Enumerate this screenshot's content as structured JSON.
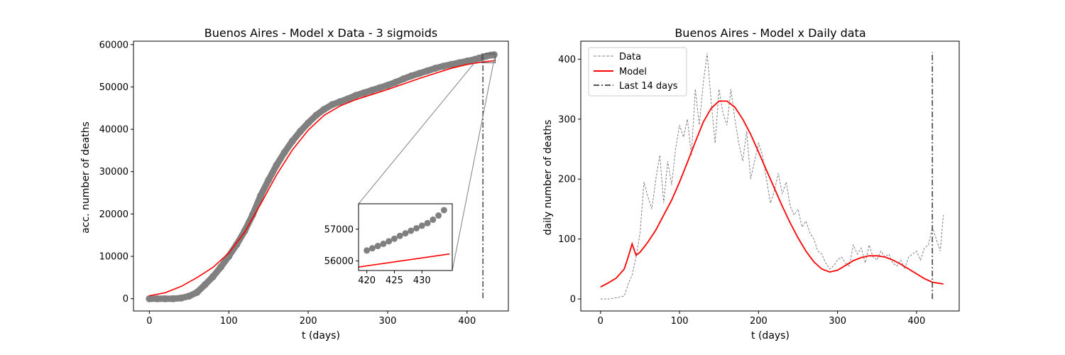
{
  "chart_data": [
    {
      "type": "line",
      "title": "Buenos Aires - Model x Data - 3 sigmoids",
      "xlabel": "t (days)",
      "ylabel": "acc. number of deaths",
      "xlim": [
        -20,
        452
      ],
      "ylim": [
        -2900,
        60800
      ],
      "xticks": [
        0,
        100,
        200,
        300,
        400
      ],
      "yticks": [
        0,
        10000,
        20000,
        30000,
        40000,
        50000,
        60000
      ],
      "grid": false,
      "series": [
        {
          "kind": "markers",
          "color": "#808080",
          "x": [
            0,
            10,
            20,
            30,
            40,
            50,
            60,
            70,
            80,
            90,
            100,
            110,
            120,
            130,
            140,
            150,
            160,
            170,
            180,
            190,
            200,
            210,
            220,
            230,
            240,
            250,
            260,
            270,
            280,
            290,
            300,
            310,
            320,
            330,
            340,
            350,
            360,
            370,
            380,
            390,
            400,
            410,
            415,
            420,
            425,
            430,
            434
          ],
          "y": [
            0,
            0,
            0,
            0,
            150,
            600,
            1500,
            3300,
            5200,
            7500,
            10000,
            12800,
            16000,
            19800,
            24300,
            28000,
            31500,
            34500,
            37200,
            39500,
            41500,
            43300,
            44700,
            45800,
            46500,
            47200,
            48000,
            48600,
            49200,
            49800,
            50400,
            51100,
            51900,
            52600,
            53200,
            53800,
            54400,
            54900,
            55300,
            55700,
            56100,
            56500,
            56800,
            57000,
            57300,
            57500,
            57600
          ]
        },
        {
          "kind": "line",
          "color": "#ff0000",
          "x": [
            0,
            20,
            40,
            60,
            80,
            100,
            120,
            140,
            160,
            180,
            200,
            220,
            240,
            260,
            280,
            300,
            320,
            340,
            360,
            380,
            400,
            420,
            435
          ],
          "y": [
            700,
            1400,
            2900,
            5000,
            7400,
            10800,
            15700,
            22300,
            29200,
            35100,
            39800,
            43300,
            45500,
            47000,
            48200,
            49400,
            50700,
            52000,
            53200,
            54400,
            55300,
            55900,
            56200
          ]
        },
        {
          "kind": "vline",
          "color": "#555555",
          "style": "dashdot",
          "x": 420
        }
      ],
      "inset": {
        "xlim": [
          418.5,
          435.5
        ],
        "ylim": [
          55700,
          57800
        ],
        "xticks": [
          420,
          425,
          430
        ],
        "yticks": [
          56000,
          57000
        ],
        "markers": {
          "x": [
            420,
            421,
            422,
            423,
            424,
            425,
            426,
            427,
            428,
            429,
            430,
            431,
            432,
            433,
            434
          ],
          "y": [
            56330,
            56400,
            56470,
            56540,
            56620,
            56700,
            56790,
            56870,
            56950,
            57030,
            57110,
            57190,
            57300,
            57430,
            57600
          ]
        },
        "model": {
          "x": [
            418.5,
            435
          ],
          "y": [
            55810,
            56220
          ]
        }
      }
    },
    {
      "type": "line",
      "title": "Buenos Aires - Model x Daily data",
      "xlabel": "t (days)",
      "ylabel": "daily number of deaths",
      "xlim": [
        -25,
        454
      ],
      "ylim": [
        -20,
        430
      ],
      "xticks": [
        0,
        100,
        200,
        300,
        400
      ],
      "yticks": [
        0,
        100,
        200,
        300,
        400
      ],
      "grid": false,
      "legend": {
        "position": "top-left",
        "entries": [
          "Data",
          "Model",
          "Last 14 days"
        ]
      },
      "series": [
        {
          "name": "Data",
          "kind": "line",
          "style": "dashed",
          "color": "#808080",
          "x": [
            0,
            10,
            20,
            30,
            35,
            40,
            45,
            50,
            55,
            60,
            65,
            70,
            75,
            80,
            85,
            90,
            95,
            100,
            105,
            110,
            115,
            120,
            125,
            130,
            135,
            140,
            145,
            150,
            155,
            160,
            165,
            170,
            175,
            180,
            185,
            190,
            195,
            200,
            205,
            210,
            215,
            220,
            225,
            230,
            235,
            240,
            245,
            250,
            255,
            260,
            265,
            270,
            275,
            280,
            285,
            290,
            295,
            300,
            305,
            310,
            315,
            320,
            325,
            330,
            335,
            340,
            345,
            350,
            355,
            360,
            365,
            370,
            375,
            380,
            385,
            390,
            395,
            400,
            405,
            410,
            415,
            420,
            425,
            430,
            434
          ],
          "y": [
            0,
            0,
            2,
            5,
            25,
            40,
            70,
            110,
            195,
            170,
            150,
            200,
            240,
            160,
            230,
            190,
            250,
            290,
            270,
            300,
            240,
            350,
            290,
            360,
            410,
            330,
            260,
            350,
            310,
            290,
            350,
            300,
            260,
            230,
            280,
            200,
            230,
            260,
            240,
            200,
            160,
            180,
            210,
            175,
            195,
            155,
            140,
            150,
            120,
            130,
            110,
            100,
            80,
            75,
            60,
            50,
            55,
            65,
            70,
            60,
            55,
            90,
            75,
            85,
            60,
            90,
            70,
            65,
            80,
            70,
            75,
            60,
            55,
            65,
            50,
            70,
            75,
            80,
            65,
            85,
            90,
            120,
            100,
            80,
            140
          ]
        },
        {
          "name": "Model",
          "kind": "line",
          "color": "#ff0000",
          "x": [
            0,
            10,
            20,
            30,
            35,
            40,
            45,
            50,
            60,
            70,
            80,
            90,
            100,
            110,
            120,
            130,
            140,
            150,
            160,
            170,
            180,
            190,
            200,
            210,
            220,
            230,
            240,
            250,
            260,
            270,
            280,
            290,
            300,
            310,
            320,
            330,
            340,
            350,
            360,
            370,
            380,
            390,
            400,
            410,
            420,
            434
          ],
          "y": [
            20,
            27,
            35,
            50,
            70,
            92,
            73,
            78,
            95,
            115,
            140,
            165,
            195,
            228,
            262,
            295,
            318,
            330,
            330,
            320,
            300,
            275,
            245,
            215,
            185,
            155,
            127,
            102,
            80,
            62,
            50,
            45,
            48,
            56,
            64,
            69,
            72,
            72,
            70,
            65,
            58,
            50,
            42,
            34,
            28,
            25
          ]
        },
        {
          "name": "Last 14 days",
          "kind": "vline",
          "style": "dashdot",
          "color": "#555555",
          "x": 420,
          "y": [
            0,
            412
          ]
        }
      ]
    }
  ]
}
